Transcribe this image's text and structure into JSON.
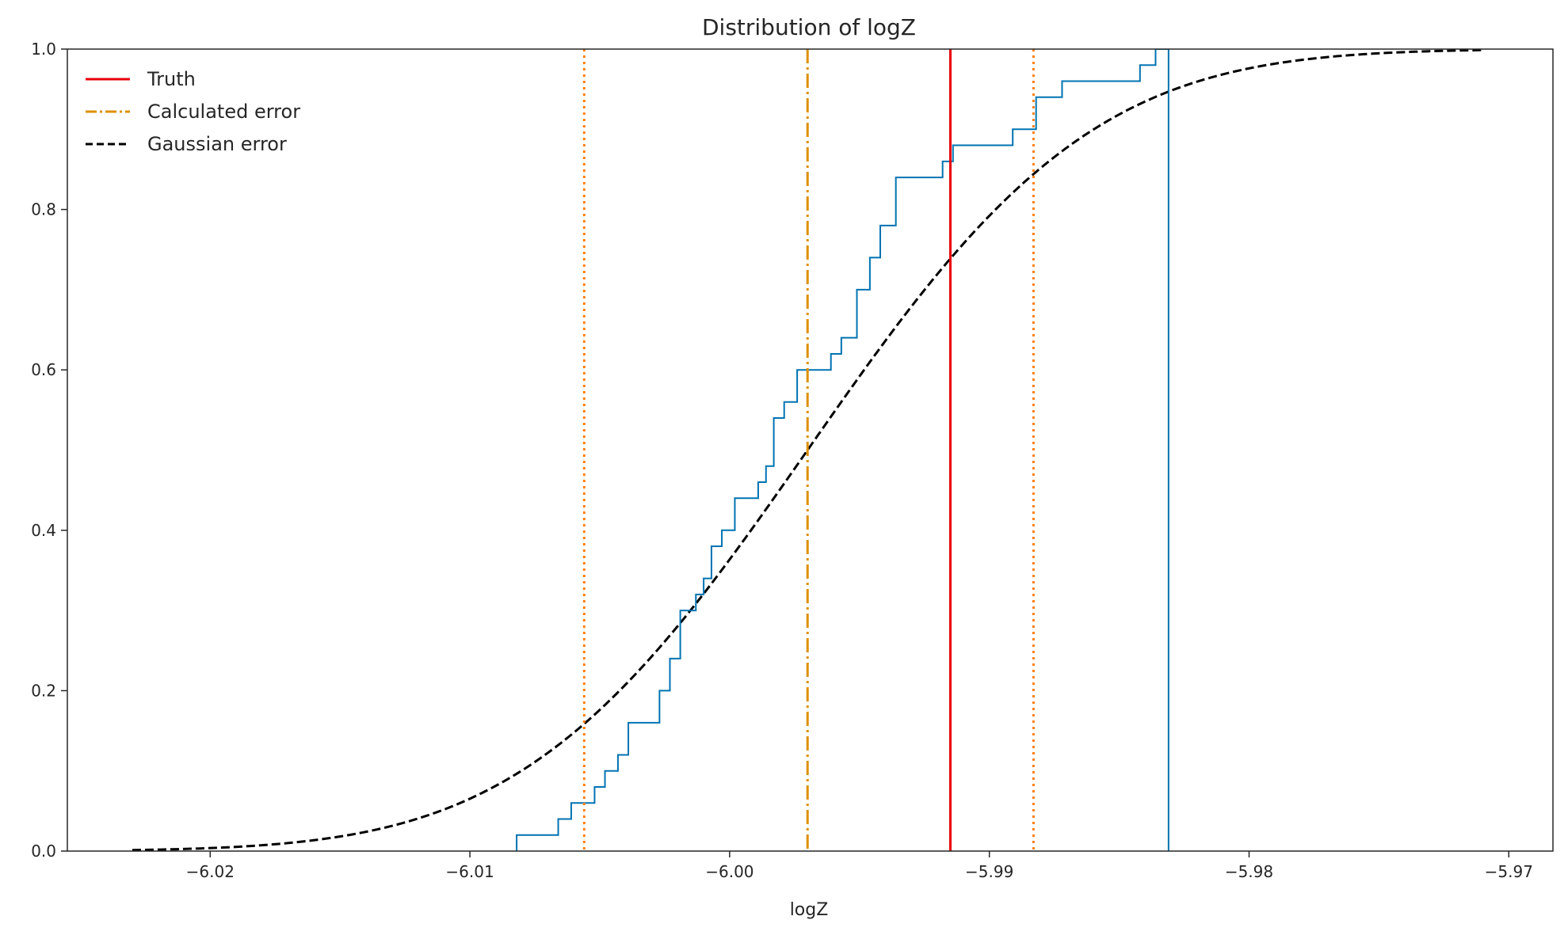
{
  "chart_data": {
    "type": "line",
    "title": "Distribution of logZ",
    "xlabel": "logZ",
    "ylabel": "",
    "xlim": [
      -6.0255,
      -5.9683
    ],
    "ylim": [
      0.0,
      1.0
    ],
    "xticks": [
      -6.02,
      -6.01,
      -6.0,
      -5.99,
      -5.98,
      -5.97
    ],
    "xtick_labels": [
      "−6.02",
      "−6.01",
      "−6.00",
      "−5.99",
      "−5.98",
      "−5.97"
    ],
    "yticks": [
      0.0,
      0.2,
      0.4,
      0.6,
      0.8,
      1.0
    ],
    "ytick_labels": [
      "0.0",
      "0.2",
      "0.4",
      "0.6",
      "0.8",
      "1.0"
    ],
    "grid": false,
    "legend_position": "top-left",
    "legend": [
      {
        "label": "Truth",
        "color": "#e8000b",
        "style": "solid"
      },
      {
        "label": "Calculated error",
        "color": "#de8f05",
        "style": "dashdot"
      },
      {
        "label": "Gaussian error",
        "color": "#000000",
        "style": "dashed"
      }
    ],
    "truth": {
      "x": -5.9915,
      "color": "#e8000b"
    },
    "calculated_error": {
      "mean": -5.997,
      "lower": -6.0056,
      "upper": -5.9883,
      "color_mean": "#de8f05",
      "color_bounds": "#ff7f0e"
    },
    "gaussian_cdf": {
      "mean": -5.997,
      "sigma": 0.0086,
      "x_range": [
        -6.023,
        -5.971
      ],
      "color": "#000000"
    },
    "ecdf": {
      "color": "#0173b2",
      "x": [
        -6.0082,
        -6.0066,
        -6.0061,
        -6.0056,
        -6.0052,
        -6.0048,
        -6.0043,
        -6.0039,
        -6.0027,
        -6.0023,
        -6.0019,
        -6.0013,
        -6.001,
        -6.0007,
        -6.0003,
        -5.9998,
        -5.9992,
        -5.9989,
        -5.9986,
        -5.9983,
        -5.9979,
        -5.9974,
        -5.9968,
        -5.9961,
        -5.9957,
        -5.9951,
        -5.9946,
        -5.9942,
        -5.9936,
        -5.9924,
        -5.9918,
        -5.9914,
        -5.9908,
        -5.9891,
        -5.9882,
        -5.9872,
        -5.9842,
        -5.9836,
        -5.9831
      ],
      "y": [
        0.02,
        0.04,
        0.06,
        0.06,
        0.08,
        0.1,
        0.12,
        0.16,
        0.2,
        0.24,
        0.3,
        0.32,
        0.34,
        0.38,
        0.4,
        0.44,
        0.44,
        0.46,
        0.48,
        0.54,
        0.56,
        0.6,
        0.6,
        0.62,
        0.64,
        0.7,
        0.74,
        0.78,
        0.84,
        0.84,
        0.86,
        0.88,
        0.88,
        0.9,
        0.94,
        0.96,
        0.98,
        1.0,
        1.0
      ]
    }
  }
}
